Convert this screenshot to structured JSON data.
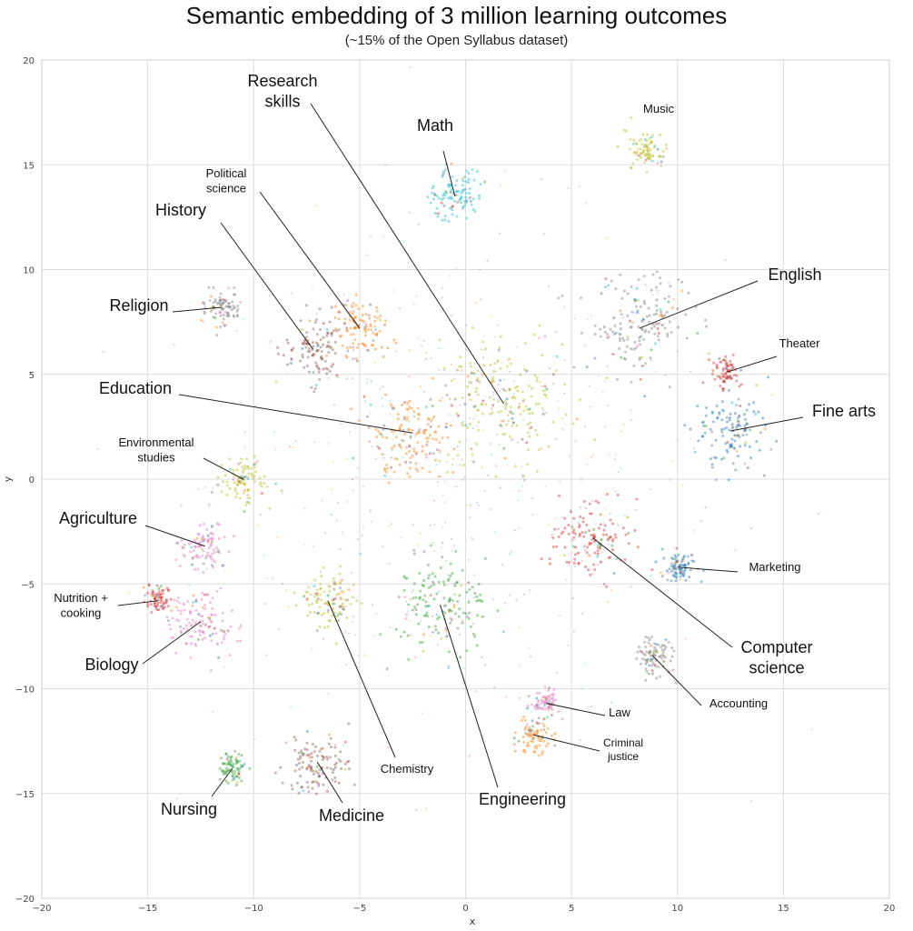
{
  "title": "Semantic embedding of 3 million learning outcomes",
  "subtitle": "(~15% of the Open Syllabus dataset)",
  "chart_data": {
    "type": "scatter",
    "title": "Semantic embedding of 3 million learning outcomes",
    "subtitle": "(~15% of the Open Syllabus dataset)",
    "xlabel": "x",
    "ylabel": "y",
    "xlim": [
      -20,
      20
    ],
    "ylim": [
      -20,
      20
    ],
    "grid": true,
    "xticks": [
      -20,
      -15,
      -10,
      -5,
      0,
      5,
      10,
      15,
      20
    ],
    "yticks": [
      -20,
      -15,
      -10,
      -5,
      0,
      5,
      10,
      15,
      20
    ],
    "clusters": [
      {
        "label": "Research skills",
        "x": 1.8,
        "y": 3.6,
        "spread": 2.8,
        "color": "#bcbd22"
      },
      {
        "label": "Math",
        "x": -0.5,
        "y": 13.5,
        "spread": 1.2,
        "color": "#17becf"
      },
      {
        "label": "Music",
        "x": 8.5,
        "y": 15.7,
        "spread": 0.8,
        "color": "#bcbd22"
      },
      {
        "label": "Political science",
        "x": -5,
        "y": 7.2,
        "spread": 1.2,
        "color": "#ff7f0e"
      },
      {
        "label": "History",
        "x": -7.2,
        "y": 6.2,
        "spread": 1.4,
        "color": "#8c564b"
      },
      {
        "label": "English",
        "x": 8.2,
        "y": 7.2,
        "spread": 2.2,
        "color": "#7f7f7f"
      },
      {
        "label": "Religion",
        "x": -11.5,
        "y": 8.2,
        "spread": 0.8,
        "color": "#7f7f7f"
      },
      {
        "label": "Theater",
        "x": 12.3,
        "y": 5.1,
        "spread": 0.6,
        "color": "#d62728"
      },
      {
        "label": "Education",
        "x": -2.5,
        "y": 2.2,
        "spread": 2.0,
        "color": "#ff7f0e"
      },
      {
        "label": "Fine arts",
        "x": 12.5,
        "y": 2.3,
        "spread": 1.6,
        "color": "#1f77b4"
      },
      {
        "label": "Environmental studies",
        "x": -10.5,
        "y": 0,
        "spread": 1.0,
        "color": "#bcbd22"
      },
      {
        "label": "Agriculture",
        "x": -12.3,
        "y": -3.2,
        "spread": 1.0,
        "color": "#e377c2"
      },
      {
        "label": "Nutrition + cooking",
        "x": -14.5,
        "y": -5.8,
        "spread": 0.6,
        "color": "#d62728"
      },
      {
        "label": "Biology",
        "x": -12.5,
        "y": -6.8,
        "spread": 1.4,
        "color": "#e377c2"
      },
      {
        "label": "Chemistry",
        "x": -6.5,
        "y": -5.8,
        "spread": 1.2,
        "color": "#bcbd22"
      },
      {
        "label": "Engineering",
        "x": -1.2,
        "y": -6,
        "spread": 2.0,
        "color": "#2ca02c"
      },
      {
        "label": "Computer science",
        "x": 6,
        "y": -2.8,
        "spread": 1.6,
        "color": "#d62728"
      },
      {
        "label": "Marketing",
        "x": 10,
        "y": -4.2,
        "spread": 0.8,
        "color": "#1f77b4"
      },
      {
        "label": "Accounting",
        "x": 8.8,
        "y": -8.4,
        "spread": 0.8,
        "color": "#7f7f7f"
      },
      {
        "label": "Law",
        "x": 3.8,
        "y": -10.7,
        "spread": 0.6,
        "color": "#e377c2"
      },
      {
        "label": "Criminal justice",
        "x": 3.2,
        "y": -12.2,
        "spread": 0.8,
        "color": "#ff7f0e"
      },
      {
        "label": "Nursing",
        "x": -11,
        "y": -13.8,
        "spread": 0.6,
        "color": "#2ca02c"
      },
      {
        "label": "Medicine",
        "x": -7,
        "y": -13.5,
        "spread": 1.4,
        "color": "#8c564b"
      }
    ]
  },
  "annotations": [
    {
      "lines": [
        "Research",
        "skills"
      ],
      "size": 18
    },
    {
      "lines": [
        "Math"
      ],
      "size": 18
    },
    {
      "lines": [
        "Music"
      ],
      "size": 13
    },
    {
      "lines": [
        "Political",
        "science"
      ],
      "size": 13
    },
    {
      "lines": [
        "History"
      ],
      "size": 18
    },
    {
      "lines": [
        "English"
      ],
      "size": 18
    },
    {
      "lines": [
        "Religion"
      ],
      "size": 18
    },
    {
      "lines": [
        "Theater"
      ],
      "size": 13
    },
    {
      "lines": [
        "Education"
      ],
      "size": 18
    },
    {
      "lines": [
        "Fine arts"
      ],
      "size": 18
    },
    {
      "lines": [
        "Environmental",
        "studies"
      ],
      "size": 13
    },
    {
      "lines": [
        "Agriculture"
      ],
      "size": 18
    },
    {
      "lines": [
        "Nutrition +",
        "cooking"
      ],
      "size": 13
    },
    {
      "lines": [
        "Biology"
      ],
      "size": 18
    },
    {
      "lines": [
        "Chemistry"
      ],
      "size": 13
    },
    {
      "lines": [
        "Engineering"
      ],
      "size": 18
    },
    {
      "lines": [
        "Computer",
        "science"
      ],
      "size": 18
    },
    {
      "lines": [
        "Marketing"
      ],
      "size": 13
    },
    {
      "lines": [
        "Accounting"
      ],
      "size": 13
    },
    {
      "lines": [
        "Law"
      ],
      "size": 13
    },
    {
      "lines": [
        "Criminal",
        "justice"
      ],
      "size": 12
    },
    {
      "lines": [
        "Nursing"
      ],
      "size": 18
    },
    {
      "lines": [
        "Medicine"
      ],
      "size": 18
    }
  ]
}
